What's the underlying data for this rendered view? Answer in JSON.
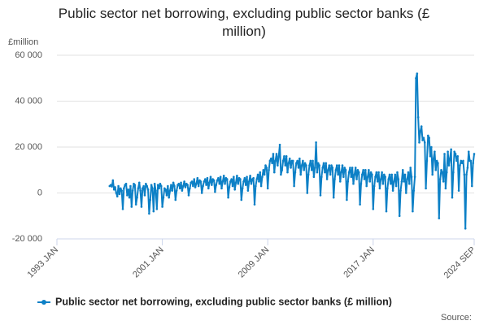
{
  "chart_data": {
    "type": "line",
    "title": "Public sector net borrowing, excluding public sector banks (£ million)",
    "y_label": "£million",
    "source": "Source:",
    "categories": [
      "1993 JAN",
      null,
      null,
      null,
      null,
      null,
      null,
      null,
      null,
      null,
      null,
      null,
      null,
      null,
      null,
      null,
      null,
      null,
      null,
      null,
      null,
      null,
      null,
      null,
      null,
      null,
      null,
      null,
      null,
      null,
      null,
      null,
      null,
      null,
      null,
      null,
      null,
      null,
      null,
      null,
      null,
      null,
      null,
      null,
      null,
      null,
      null,
      null,
      null,
      null,
      null,
      null,
      null,
      null,
      null,
      null,
      null,
      null,
      null,
      null,
      null,
      null,
      null,
      null,
      null,
      null,
      null,
      null,
      null,
      null,
      null,
      null,
      null,
      null,
      null,
      null,
      null,
      null,
      null,
      null,
      null,
      null,
      null,
      null,
      null,
      null,
      null,
      null,
      null,
      null,
      null,
      null,
      null,
      null,
      null,
      null,
      "2001 JAN",
      null,
      null,
      null,
      null,
      null,
      null,
      null,
      null,
      null,
      null,
      null,
      null,
      null,
      null,
      null,
      null,
      null,
      null,
      null,
      null,
      null,
      null,
      null,
      null,
      null,
      null,
      null,
      null,
      null,
      null,
      null,
      null,
      null,
      null,
      null,
      null,
      null,
      null,
      null,
      null,
      null,
      null,
      null,
      null,
      null,
      null,
      null,
      null,
      null,
      null,
      null,
      null,
      null,
      null,
      null,
      null,
      null,
      null,
      null,
      null,
      null,
      null,
      null,
      null,
      null,
      null,
      null,
      null,
      null,
      null,
      null,
      null,
      null,
      null,
      null,
      null,
      null,
      null,
      null,
      null,
      null,
      null,
      null,
      null,
      null,
      null,
      null,
      null,
      null,
      null,
      null,
      null,
      null,
      null,
      null,
      "2009 JAN",
      null,
      null,
      null,
      null,
      null,
      null,
      null,
      null,
      null,
      null,
      null,
      null,
      null,
      null,
      null,
      null,
      null,
      null,
      null,
      null,
      null,
      null,
      null,
      null,
      null,
      null,
      null,
      null,
      null,
      null,
      null,
      null,
      null,
      null,
      null,
      null,
      null,
      null,
      null,
      null,
      null,
      null,
      null,
      null,
      null,
      null,
      null,
      null,
      null,
      null,
      null,
      null,
      null,
      null,
      null,
      null,
      null,
      null,
      null,
      null,
      null,
      null,
      null,
      null,
      null,
      null,
      null,
      null,
      null,
      null,
      null,
      null,
      null,
      null,
      null,
      null,
      null,
      null,
      null,
      null,
      null,
      null,
      null,
      null,
      null,
      null,
      null,
      null,
      null,
      null,
      null,
      null,
      null,
      null,
      null,
      "2017 JAN",
      null,
      null,
      null,
      null,
      null,
      null,
      null,
      null,
      null,
      null,
      null,
      null,
      null,
      null,
      null,
      null,
      null,
      null,
      null,
      null,
      null,
      null,
      null,
      null,
      null,
      null,
      null,
      null,
      null,
      null,
      null,
      null,
      null,
      null,
      null,
      null,
      null,
      null,
      null,
      null,
      null,
      null,
      null,
      null,
      null,
      null,
      null,
      null,
      null,
      null,
      null,
      null,
      null,
      null,
      null,
      null,
      null,
      null,
      null,
      null,
      null,
      null,
      null,
      null,
      null,
      null,
      null,
      null,
      null,
      null,
      null,
      null,
      null,
      null,
      null,
      null,
      null,
      null,
      null,
      null,
      null,
      null,
      null,
      null,
      null,
      null,
      null,
      null,
      null,
      null,
      null,
      "2024 SEP"
    ],
    "series": [
      {
        "name": "Public sector net borrowing, excluding public sector banks (£ million)",
        "color": "#0d80c6",
        "values": [
          null,
          null,
          null,
          null,
          null,
          null,
          null,
          null,
          null,
          null,
          null,
          null,
          null,
          null,
          null,
          null,
          null,
          null,
          null,
          null,
          null,
          null,
          null,
          null,
          null,
          null,
          null,
          null,
          null,
          null,
          null,
          null,
          null,
          null,
          null,
          null,
          null,
          null,
          null,
          null,
          null,
          null,
          null,
          null,
          null,
          null,
          null,
          null,
          3000,
          3500,
          2800,
          5500,
          1500,
          2500,
          0,
          -1500,
          3000,
          -500,
          2000,
          1000,
          -7000,
          2000,
          3500,
          4000,
          -1000,
          1500,
          -2000,
          3000,
          -6000,
          1000,
          4000,
          3500,
          -5000,
          -2000,
          2000,
          4500,
          1000,
          -6000,
          2000,
          3000,
          -1000,
          4000,
          3000,
          1500,
          -9000,
          -3000,
          3500,
          2000,
          -8000,
          4000,
          1000,
          -7000,
          3500,
          2000,
          4000,
          3000,
          -6000,
          -2000,
          2000,
          1500,
          -1000,
          3000,
          -2000,
          1000,
          3500,
          1000,
          4500,
          3000,
          -3000,
          1000,
          3500,
          4000,
          2000,
          4500,
          1000,
          3000,
          5000,
          2500,
          4000,
          3500,
          -1000,
          2000,
          4500,
          5000,
          3000,
          6000,
          2500,
          4000,
          6500,
          3000,
          5500,
          5000,
          0,
          3000,
          5000,
          6000,
          3500,
          6500,
          2000,
          4500,
          7000,
          3500,
          6000,
          5500,
          500,
          3500,
          5500,
          6500,
          4000,
          7000,
          2000,
          5000,
          7500,
          4000,
          6500,
          6000,
          -2000,
          2500,
          5000,
          6000,
          3000,
          7000,
          1500,
          4500,
          7500,
          4000,
          6500,
          6000,
          -3000,
          2000,
          5000,
          6500,
          3500,
          7000,
          1000,
          5000,
          7500,
          4000,
          6000,
          6500,
          -5000,
          3000,
          6000,
          8000,
          5000,
          9000,
          3000,
          7000,
          10000,
          8000,
          12000,
          11000,
          2000,
          10000,
          14000,
          15000,
          13000,
          17000,
          9000,
          14000,
          17000,
          12000,
          16000,
          21000,
          8000,
          10000,
          14000,
          16000,
          12000,
          16000,
          9000,
          13000,
          15000,
          11000,
          14000,
          14000,
          3000,
          9000,
          13000,
          14000,
          11000,
          15000,
          8000,
          12000,
          14000,
          10000,
          13000,
          12000,
          0,
          8000,
          12000,
          14000,
          10000,
          14000,
          7000,
          11000,
          22000,
          9000,
          13000,
          12000,
          -1000,
          7000,
          11000,
          13000,
          9000,
          13000,
          6000,
          10000,
          12000,
          8000,
          12000,
          11000,
          -2000,
          6000,
          10000,
          12000,
          8000,
          12000,
          5000,
          9000,
          12000,
          7000,
          11000,
          10000,
          -3000,
          5000,
          9000,
          11000,
          7000,
          11000,
          4000,
          8000,
          11000,
          6000,
          10000,
          9000,
          -5000,
          4000,
          8000,
          10000,
          6000,
          10000,
          3000,
          7000,
          10000,
          5000,
          9000,
          8000,
          -7000,
          3000,
          7000,
          9000,
          5000,
          9000,
          2000,
          6000,
          9000,
          4000,
          8000,
          7000,
          -8000,
          2000,
          6000,
          8000,
          4000,
          8000,
          1000,
          5000,
          8000,
          3000,
          9000,
          6000,
          -10000,
          1000,
          5000,
          10000,
          5000,
          8000,
          0,
          6000,
          9000,
          4000,
          11000,
          7000,
          -8000,
          1000,
          7000,
          50000,
          52000,
          33000,
          22000,
          27000,
          29000,
          23000,
          24000,
          22000,
          2000,
          14000,
          25000,
          24000,
          16000,
          20000,
          8000,
          15000,
          18000,
          10000,
          14000,
          13000,
          -11000,
          6000,
          10000,
          9000,
          5000,
          17000,
          2000,
          9000,
          18000,
          12000,
          15000,
          19000,
          -2000,
          9000,
          18000,
          17000,
          14000,
          16000,
          1000,
          12000,
          14000,
          13000,
          14000,
          8000,
          -15500,
          8000,
          11000,
          18000,
          14000,
          14000,
          3000,
          13000,
          17000
        ]
      }
    ],
    "ylim": [
      -20000,
      60000
    ],
    "yticks": [
      {
        "value": -20000,
        "label": "-20 000"
      },
      0,
      {
        "value": 20000,
        "label": "20 000"
      },
      {
        "value": 40000,
        "label": "40 000"
      },
      {
        "value": 60000,
        "label": "60 000"
      }
    ],
    "grid": true
  }
}
